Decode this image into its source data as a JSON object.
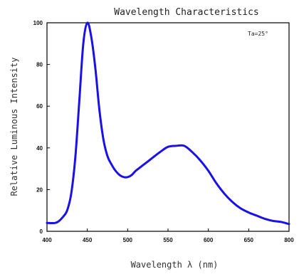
{
  "chart_data": {
    "type": "line",
    "title": "Wavelength Characteristics",
    "xlabel": "Wavelength λ (nm)",
    "ylabel": "Relative Luminous Intensity",
    "annotation": "Ta=25°",
    "xlim": [
      400,
      800
    ],
    "ylim": [
      0,
      100
    ],
    "x_ticks": [
      "400",
      "450",
      "500",
      "550",
      "600",
      "650",
      "800"
    ],
    "y_ticks": [
      "0",
      "20",
      "40",
      "60",
      "80",
      "100"
    ],
    "grid": false,
    "line_color": "#1a10e8",
    "series": [
      {
        "x": [
          400,
          410,
          415,
          420,
          425,
          430,
          435,
          440,
          445,
          450,
          455,
          460,
          465,
          470,
          475,
          480,
          485,
          490,
          495,
          500,
          505,
          510,
          520,
          530,
          540,
          550,
          560,
          570,
          580,
          590,
          600,
          610,
          620,
          630,
          640,
          650,
          660,
          670,
          680,
          690,
          700
        ],
        "y": [
          4,
          4,
          5,
          7,
          10,
          18,
          35,
          62,
          90,
          100,
          93,
          78,
          58,
          44,
          36,
          32,
          29,
          27,
          26,
          26,
          27,
          29,
          32,
          35,
          38,
          40.5,
          41,
          41,
          38,
          34,
          29,
          23,
          18,
          14,
          11,
          9,
          7.5,
          6,
          5,
          4.5,
          3.5
        ]
      }
    ]
  }
}
